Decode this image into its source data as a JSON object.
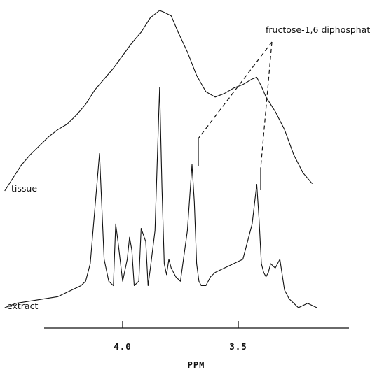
{
  "chart_data": {
    "type": "line",
    "title": "",
    "xlabel": "PPM",
    "ylabel": "",
    "x_direction": "decreasing",
    "xlim": [
      4.52,
      3.16
    ],
    "xticks": [
      4.0,
      3.5
    ],
    "xtick_labels": [
      "4.0",
      "3.5"
    ],
    "grid": false,
    "legend": "none",
    "series": [
      {
        "name": "tissue",
        "x": [
          4.51,
          4.48,
          4.44,
          4.4,
          4.36,
          4.32,
          4.28,
          4.24,
          4.2,
          4.16,
          4.12,
          4.08,
          4.04,
          4.0,
          3.96,
          3.92,
          3.88,
          3.84,
          3.82,
          3.79,
          3.76,
          3.72,
          3.68,
          3.64,
          3.6,
          3.56,
          3.52,
          3.48,
          3.44,
          3.42,
          3.4,
          3.38,
          3.36,
          3.34,
          3.3,
          3.26,
          3.22,
          3.18
        ],
        "y": [
          0.0,
          0.06,
          0.14,
          0.2,
          0.25,
          0.3,
          0.34,
          0.37,
          0.42,
          0.48,
          0.56,
          0.62,
          0.68,
          0.75,
          0.82,
          0.88,
          0.96,
          1.0,
          0.99,
          0.97,
          0.88,
          0.77,
          0.64,
          0.55,
          0.52,
          0.54,
          0.57,
          0.59,
          0.62,
          0.63,
          0.58,
          0.52,
          0.48,
          0.44,
          0.34,
          0.2,
          0.1,
          0.04
        ]
      },
      {
        "name": "extract",
        "x": [
          4.51,
          4.46,
          4.4,
          4.34,
          4.28,
          4.22,
          4.18,
          4.16,
          4.14,
          4.12,
          4.1,
          4.08,
          4.06,
          4.04,
          4.03,
          4.02,
          4.0,
          3.98,
          3.97,
          3.96,
          3.95,
          3.93,
          3.92,
          3.9,
          3.89,
          3.88,
          3.86,
          3.84,
          3.83,
          3.82,
          3.81,
          3.8,
          3.79,
          3.78,
          3.77,
          3.75,
          3.72,
          3.7,
          3.69,
          3.68,
          3.67,
          3.66,
          3.64,
          3.62,
          3.6,
          3.56,
          3.52,
          3.48,
          3.44,
          3.42,
          3.41,
          3.4,
          3.39,
          3.38,
          3.37,
          3.36,
          3.34,
          3.32,
          3.3,
          3.28,
          3.26,
          3.24,
          3.2,
          3.16
        ],
        "y": [
          0.0,
          0.02,
          0.03,
          0.04,
          0.05,
          0.08,
          0.1,
          0.12,
          0.2,
          0.45,
          0.7,
          0.22,
          0.12,
          0.1,
          0.38,
          0.3,
          0.12,
          0.22,
          0.32,
          0.26,
          0.1,
          0.12,
          0.36,
          0.3,
          0.1,
          0.18,
          0.35,
          1.0,
          0.55,
          0.2,
          0.15,
          0.22,
          0.18,
          0.16,
          0.14,
          0.12,
          0.35,
          0.65,
          0.48,
          0.2,
          0.12,
          0.1,
          0.1,
          0.14,
          0.16,
          0.18,
          0.2,
          0.22,
          0.38,
          0.56,
          0.4,
          0.2,
          0.16,
          0.14,
          0.16,
          0.2,
          0.18,
          0.22,
          0.08,
          0.04,
          0.02,
          0.0,
          0.02,
          0.0
        ]
      }
    ],
    "trace_labels": [
      "tissue",
      "extract"
    ],
    "annotations": [
      {
        "text": "fructose-1,6 diphosphat",
        "marks_x": [
          3.66,
          3.38
        ]
      }
    ]
  }
}
